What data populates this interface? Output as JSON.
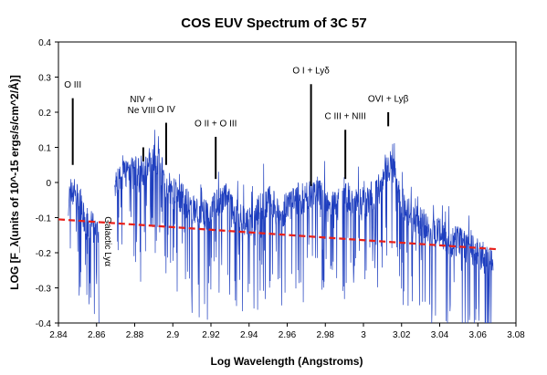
{
  "chart_data": {
    "type": "line",
    "title": "COS EUV Spectrum of 3C 57",
    "xlabel": "Log Wavelength (Angstroms)",
    "ylabel": "LOG [F_λ(units of 10^-15 ergs/s/cm^2/Å)]",
    "xlim": [
      2.84,
      3.08
    ],
    "ylim": [
      -0.4,
      0.4
    ],
    "xticks": [
      "2.84",
      "2.86",
      "2.88",
      "2.9",
      "2.92",
      "2.94",
      "2.96",
      "2.98",
      "3",
      "3.02",
      "3.04",
      "3.06",
      "3.08"
    ],
    "yticks": [
      "-0.4",
      "-0.3",
      "-0.2",
      "-0.1",
      "0",
      "0.1",
      "0.2",
      "0.3",
      "0.4"
    ],
    "grid": false,
    "series": [
      {
        "color": "#1f3fbf",
        "style": "solid",
        "segments": [
          {
            "x": [
              2.8452,
              2.847,
              2.849,
              2.851,
              2.853,
              2.855,
              2.857,
              2.859,
              2.8612
            ],
            "y": [
              -0.05,
              -0.02,
              -0.03,
              -0.06,
              -0.1,
              -0.13,
              -0.12,
              -0.14,
              -0.16
            ]
          },
          {
            "x": [
              2.8695,
              2.872,
              2.875,
              2.878,
              2.881,
              2.884,
              2.887,
              2.889,
              2.891,
              2.893,
              2.895,
              2.897,
              2.9,
              2.903,
              2.906,
              2.909,
              2.912,
              2.915,
              2.918,
              2.921,
              2.924,
              2.927,
              2.93,
              2.933,
              2.936,
              2.939,
              2.942,
              2.945,
              2.948,
              2.951,
              2.954,
              2.957,
              2.96,
              2.963,
              2.966,
              2.969,
              2.972,
              2.975,
              2.978,
              2.981,
              2.984,
              2.987
            ],
            "y": [
              -0.02,
              0.02,
              0.03,
              0.04,
              0.03,
              0.02,
              0.05,
              0.07,
              0.06,
              0.05,
              0.02,
              -0.02,
              -0.03,
              -0.04,
              -0.05,
              -0.07,
              -0.08,
              -0.09,
              -0.09,
              -0.07,
              -0.05,
              -0.04,
              -0.06,
              -0.09,
              -0.1,
              -0.12,
              -0.11,
              -0.08,
              -0.06,
              -0.05,
              -0.08,
              -0.09,
              -0.07,
              -0.06,
              -0.04,
              -0.05,
              -0.03,
              -0.02,
              -0.04,
              -0.07,
              -0.05,
              -0.06
            ]
          },
          {
            "x": [
              2.989,
              2.992,
              2.995,
              2.998,
              3.001,
              3.004,
              3.007,
              3.01,
              3.012,
              3.014,
              3.016,
              3.018,
              3.02,
              3.023,
              3.026,
              3.029,
              3.032,
              3.035,
              3.038,
              3.041,
              3.044,
              3.047,
              3.05,
              3.053,
              3.056,
              3.059,
              3.062,
              3.065,
              3.068
            ],
            "y": [
              -0.05,
              -0.04,
              -0.07,
              -0.05,
              -0.06,
              -0.04,
              -0.03,
              0.0,
              0.03,
              0.05,
              0.04,
              -0.02,
              -0.05,
              -0.08,
              -0.1,
              -0.11,
              -0.13,
              -0.14,
              -0.15,
              -0.14,
              -0.16,
              -0.17,
              -0.16,
              -0.18,
              -0.19,
              -0.2,
              -0.21,
              -0.22,
              -0.23
            ]
          }
        ]
      },
      {
        "color": "#e8201a",
        "style": "dashed",
        "x": [
          2.84,
          3.07
        ],
        "y": [
          -0.105,
          -0.19
        ]
      }
    ],
    "annotations": [
      {
        "text": "O III",
        "x": 2.8475,
        "label_y": 0.27,
        "line_top": 0.24,
        "line_bottom": 0.05
      },
      {
        "text": "NIV +",
        "text2": "Ne VIII",
        "x": 2.8845,
        "label_y": 0.2,
        "line_top": 0.1,
        "line_bottom": 0.06
      },
      {
        "text": "O IV",
        "x": 2.8965,
        "label_y": 0.2,
        "line_top": 0.17,
        "line_bottom": 0.05
      },
      {
        "text": "O II + O III",
        "x": 2.9225,
        "label_y": 0.16,
        "line_top": 0.13,
        "line_bottom": 0.01
      },
      {
        "text": "O I + Lyδ",
        "x": 2.9725,
        "label_y": 0.31,
        "line_top": 0.28,
        "line_bottom": -0.01
      },
      {
        "text": "C III + NIII",
        "x": 2.9905,
        "label_y": 0.18,
        "line_top": 0.15,
        "line_bottom": 0.01
      },
      {
        "text": "OVI + Lyβ",
        "x": 3.013,
        "label_y": 0.23,
        "line_top": 0.2,
        "line_bottom": 0.16
      },
      {
        "text": "Galactic  Lyα",
        "x": 2.8655,
        "label_y": -0.09,
        "rotate": true
      }
    ]
  }
}
